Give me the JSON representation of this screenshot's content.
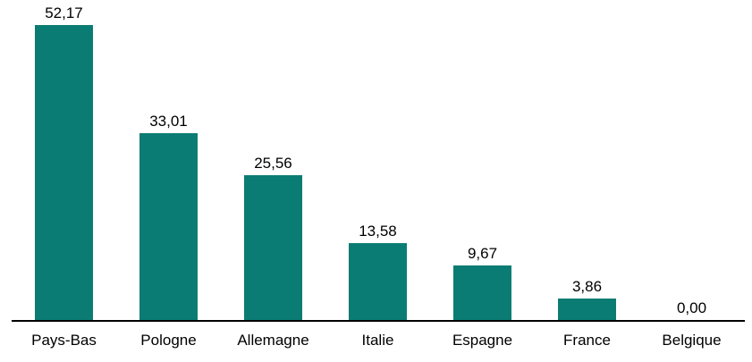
{
  "chart_data": {
    "type": "bar",
    "categories": [
      "Pays-Bas",
      "Pologne",
      "Allemagne",
      "Italie",
      "Espagne",
      "France",
      "Belgique"
    ],
    "values": [
      52.17,
      33.01,
      25.56,
      13.58,
      9.67,
      3.86,
      0.0
    ],
    "value_labels": [
      "52,17",
      "33,01",
      "25,56",
      "13,58",
      "9,67",
      "3,86",
      "0,00"
    ],
    "title": "",
    "xlabel": "",
    "ylabel": "",
    "ylim": [
      0,
      55
    ],
    "grid": false,
    "legend": "none",
    "colors": {
      "bar": "#0B7C74",
      "axis": "#000000",
      "text": "#000000"
    }
  }
}
